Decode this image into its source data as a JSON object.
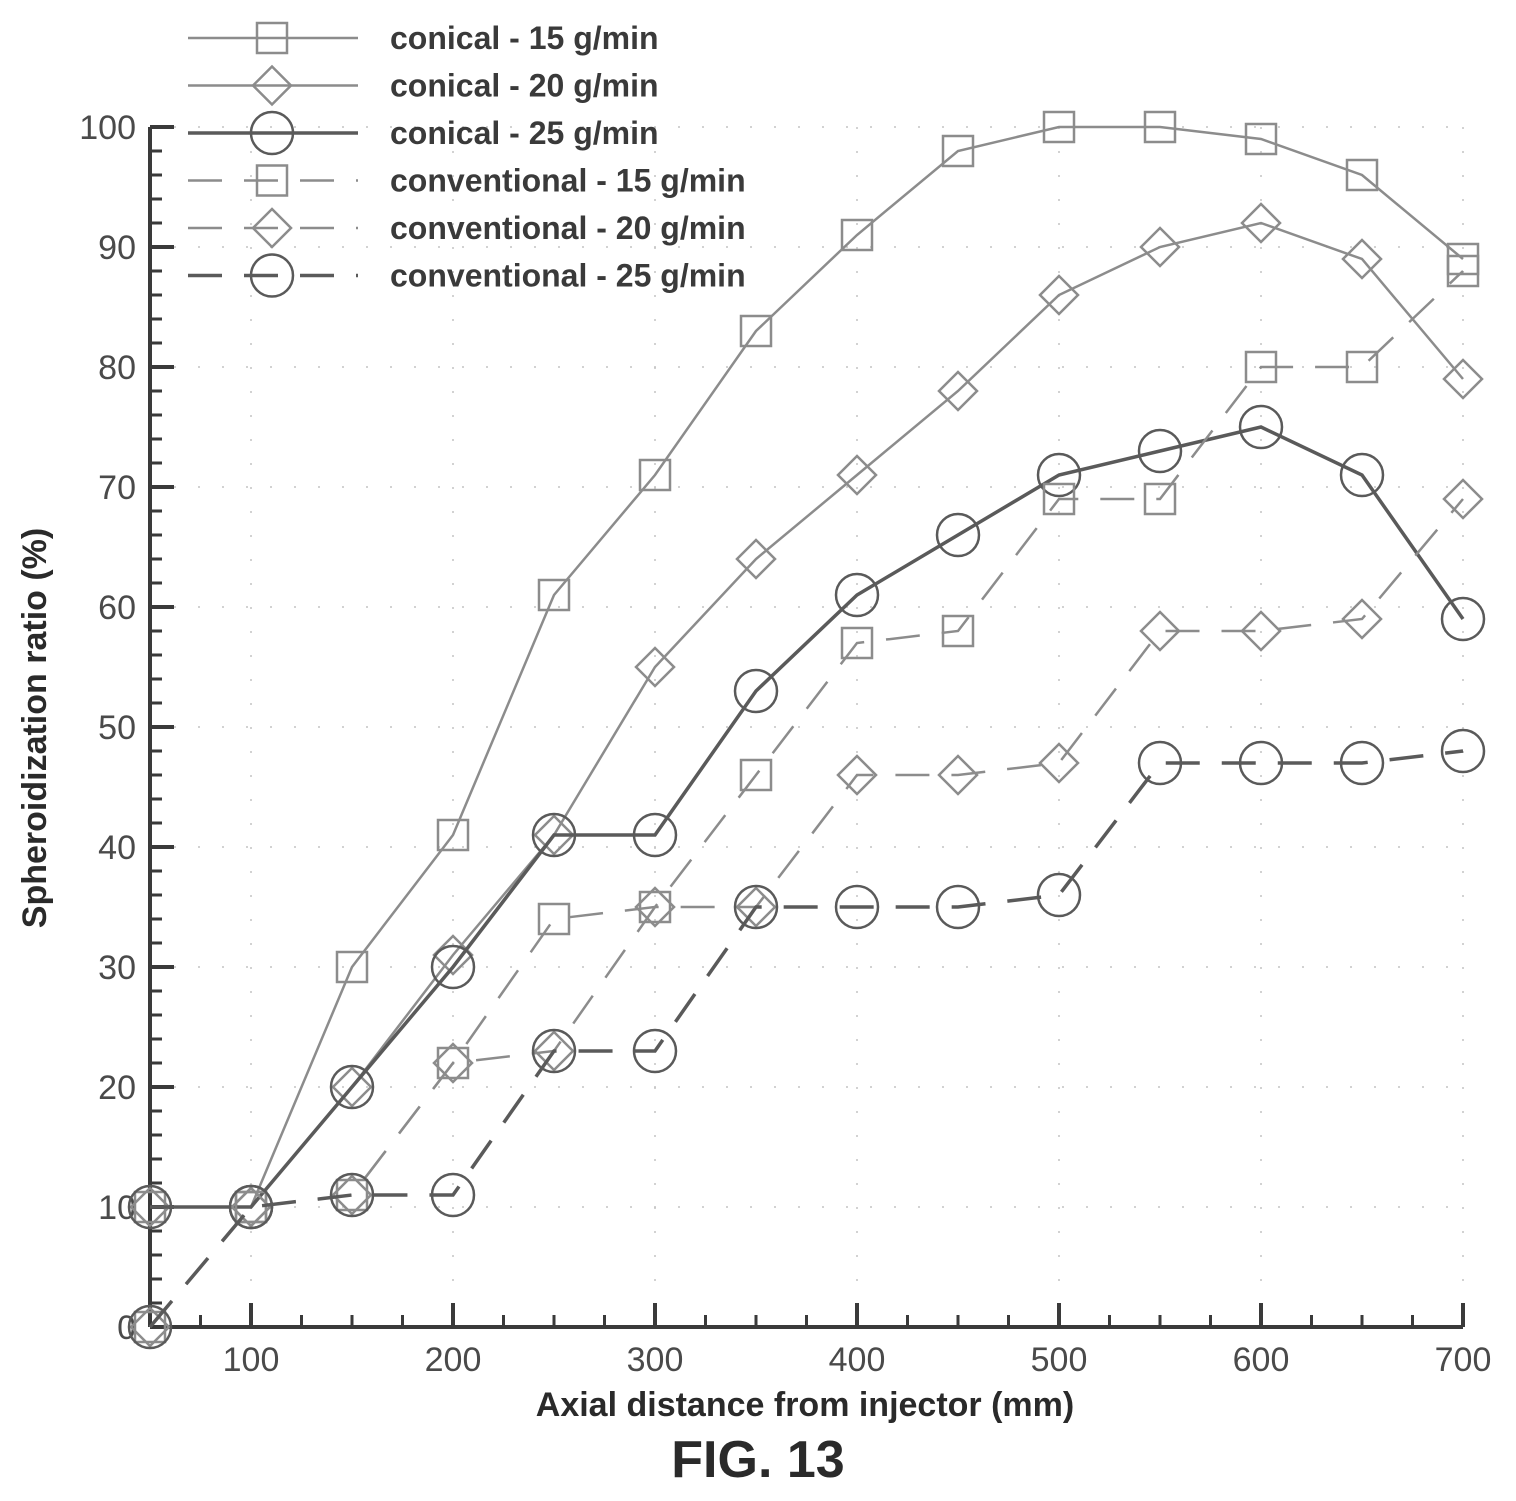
{
  "figure_caption": "FIG. 13",
  "chart_data": {
    "type": "line",
    "title": "",
    "xlabel": "Axial distance from injector (mm)",
    "ylabel": "Spheroidization ratio (%)",
    "xlim": [
      50,
      700
    ],
    "ylim": [
      0,
      100
    ],
    "x_ticks": [
      100,
      200,
      300,
      400,
      500,
      600,
      700
    ],
    "y_ticks": [
      0,
      10,
      20,
      30,
      40,
      50,
      60,
      70,
      80,
      90,
      100
    ],
    "y_tick_labels": [
      "0",
      "10",
      "20",
      "30",
      "40",
      "50",
      "60",
      "70",
      "80",
      "90",
      "100"
    ],
    "grid": "dotted",
    "legend_position": "top-left",
    "series": [
      {
        "name": "conical - 15 g/min",
        "marker": "square",
        "line": "solid",
        "color": "#8c8c8c",
        "x": [
          50,
          100,
          150,
          200,
          250,
          300,
          350,
          400,
          450,
          500,
          550,
          600,
          650,
          700
        ],
        "y": [
          10,
          10,
          30,
          41,
          61,
          71,
          83,
          91,
          98,
          100,
          100,
          99,
          96,
          89
        ]
      },
      {
        "name": "conical - 20 g/min",
        "marker": "diamond",
        "line": "solid",
        "color": "#8c8c8c",
        "x": [
          50,
          100,
          150,
          200,
          250,
          300,
          350,
          400,
          450,
          500,
          550,
          600,
          650,
          700
        ],
        "y": [
          10,
          10,
          20,
          31,
          41,
          55,
          64,
          71,
          78,
          86,
          90,
          92,
          89,
          79
        ]
      },
      {
        "name": "conical - 25 g/min",
        "marker": "circle",
        "line": "solid",
        "color": "#5a5a5a",
        "x": [
          50,
          100,
          150,
          200,
          250,
          300,
          350,
          400,
          450,
          500,
          550,
          600,
          650,
          700
        ],
        "y": [
          10,
          10,
          20,
          30,
          41,
          41,
          53,
          61,
          66,
          71,
          73,
          75,
          71,
          59
        ]
      },
      {
        "name": "conventional - 15 g/min",
        "marker": "square",
        "line": "dashed",
        "color": "#8c8c8c",
        "x": [
          50,
          100,
          150,
          200,
          250,
          300,
          350,
          400,
          450,
          500,
          550,
          600,
          650,
          700
        ],
        "y": [
          0,
          10,
          11,
          22,
          34,
          35,
          46,
          57,
          58,
          69,
          69,
          80,
          80,
          88
        ]
      },
      {
        "name": "conventional - 20 g/min",
        "marker": "diamond",
        "line": "dashed",
        "color": "#8c8c8c",
        "x": [
          50,
          100,
          150,
          200,
          250,
          300,
          350,
          400,
          450,
          500,
          550,
          600,
          650,
          700
        ],
        "y": [
          0,
          10,
          11,
          22,
          23,
          35,
          35,
          46,
          46,
          47,
          58,
          58,
          59,
          69
        ]
      },
      {
        "name": "conventional - 25 g/min",
        "marker": "circle",
        "line": "dashed",
        "color": "#5a5a5a",
        "x": [
          50,
          100,
          150,
          200,
          250,
          300,
          350,
          400,
          450,
          500,
          550,
          600,
          650,
          700
        ],
        "y": [
          0,
          10,
          11,
          11,
          23,
          23,
          35,
          35,
          35,
          36,
          47,
          47,
          47,
          48
        ]
      }
    ]
  }
}
